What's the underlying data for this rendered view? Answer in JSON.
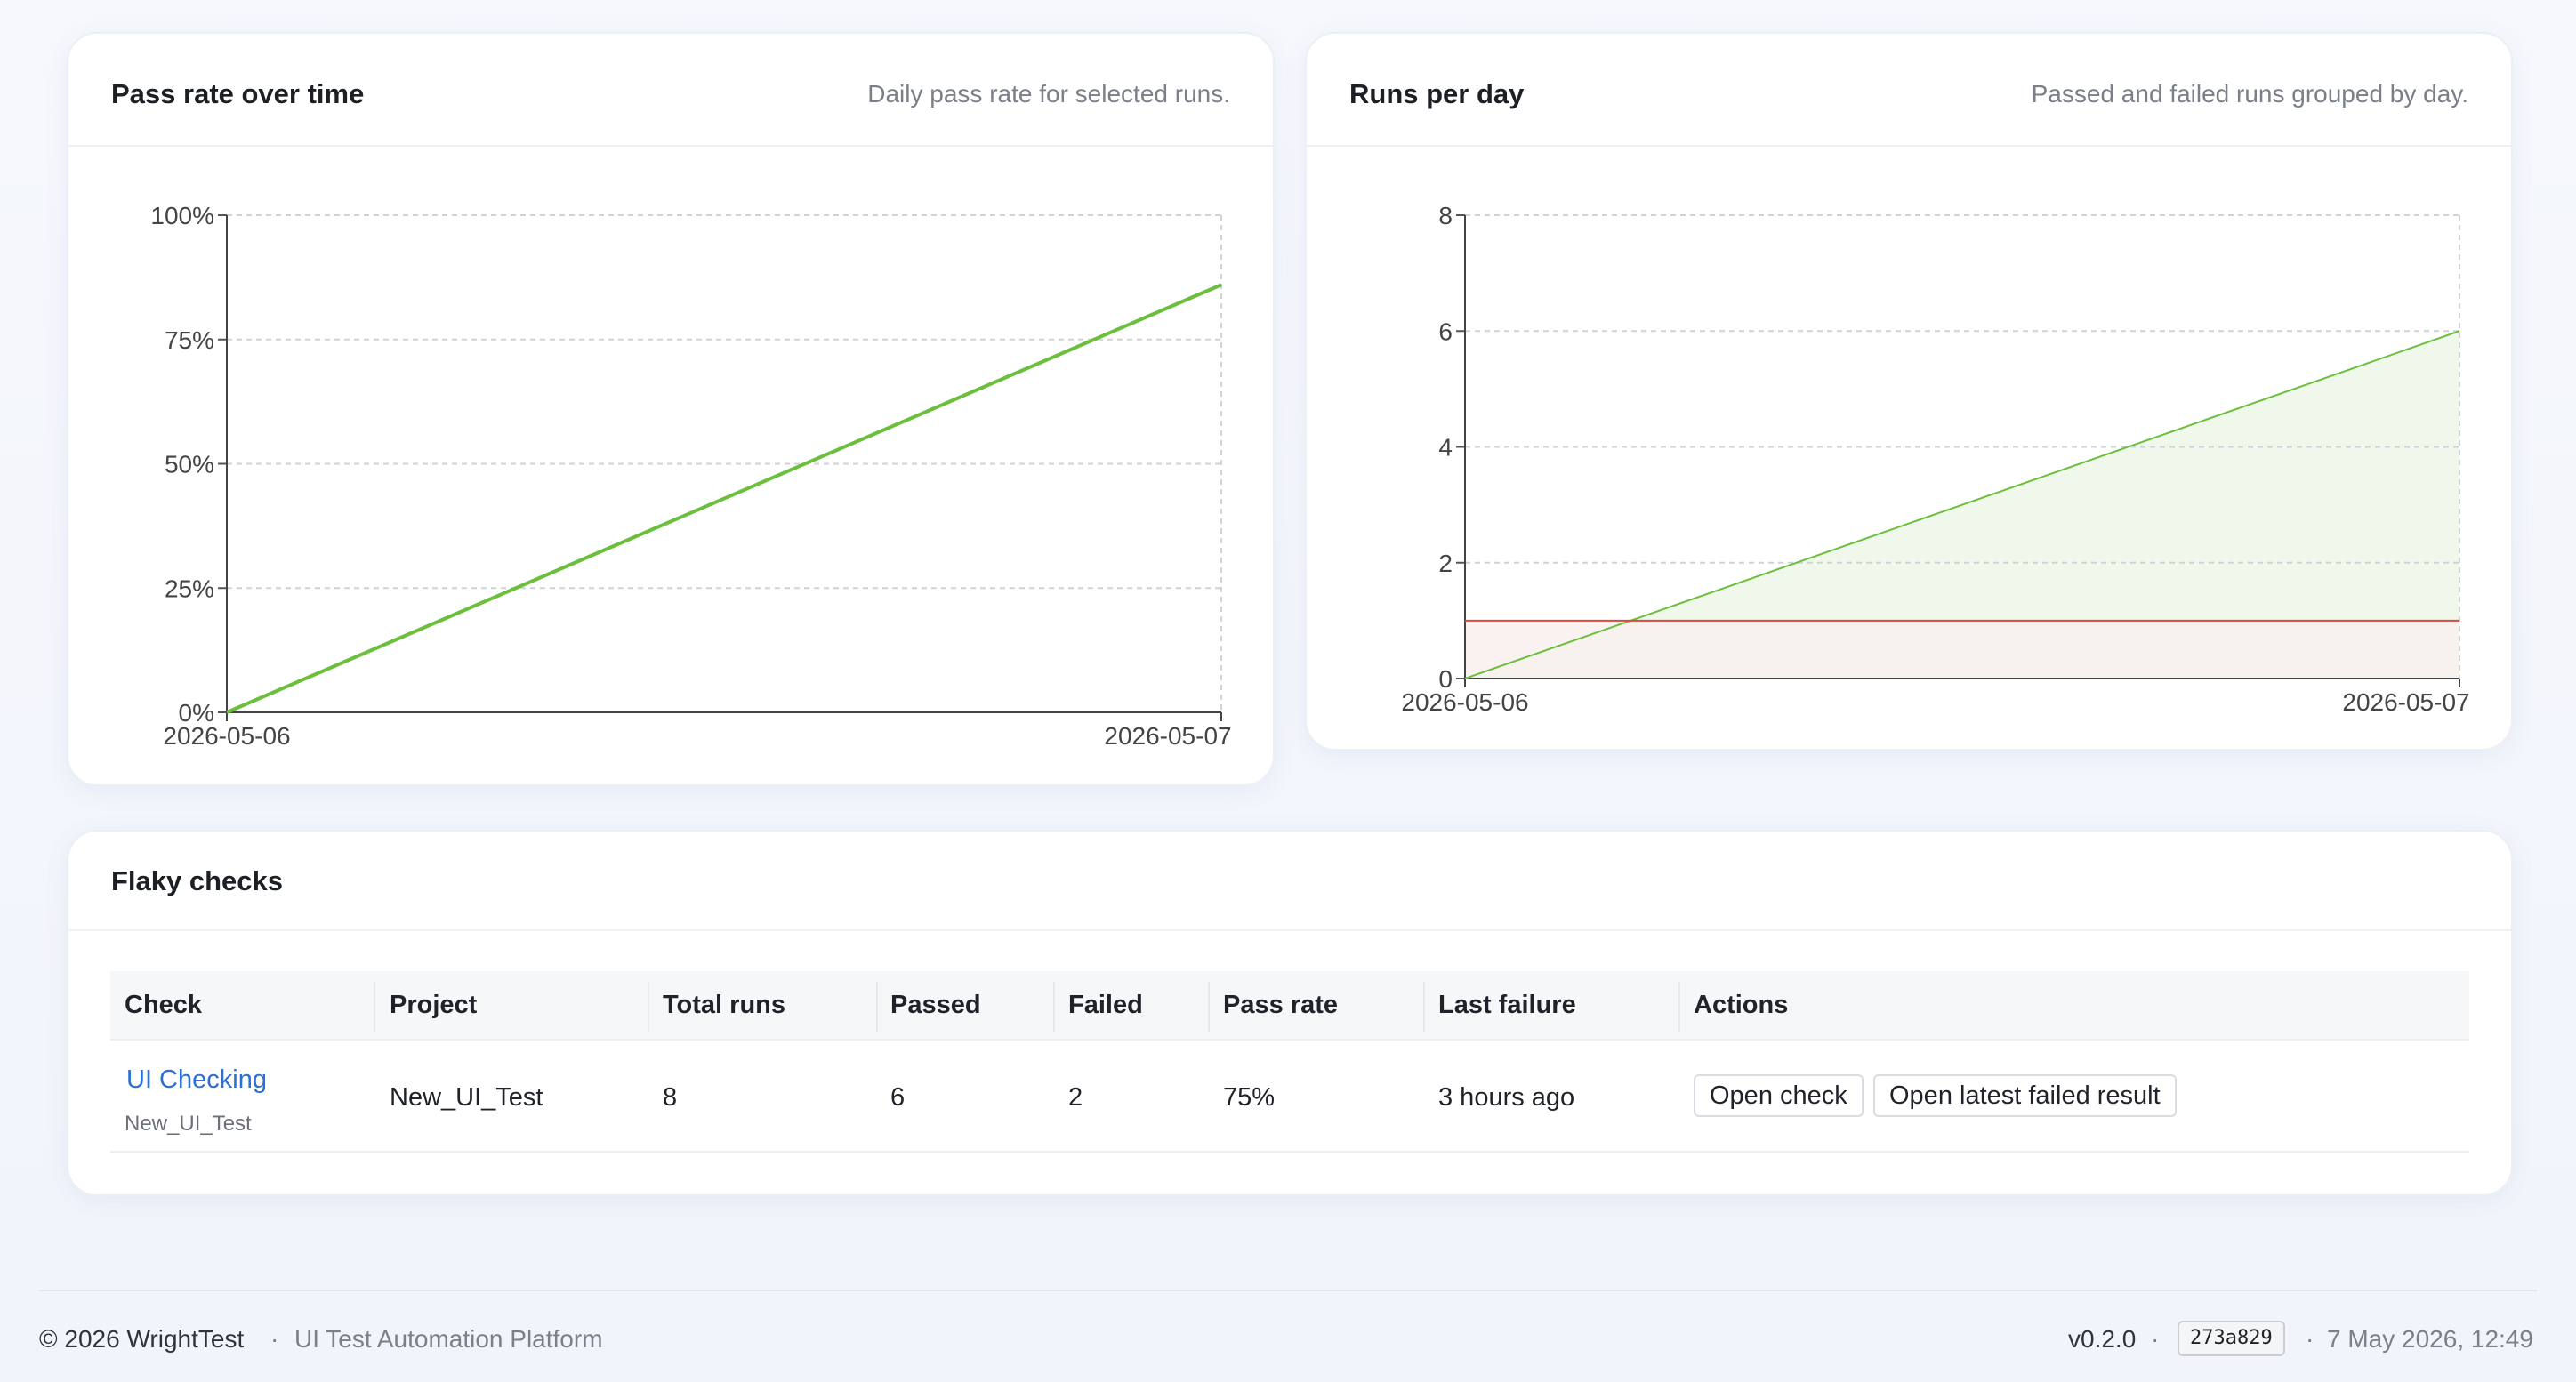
{
  "pass_rate_card": {
    "title": "Pass rate over time",
    "subtitle": "Daily pass rate for selected runs."
  },
  "runs_card": {
    "title": "Runs per day",
    "subtitle": "Passed and failed runs grouped by day."
  },
  "chart_data": [
    {
      "type": "line",
      "title": "Pass rate over time",
      "x": [
        "2026-05-06",
        "2026-05-07"
      ],
      "y_ticks": [
        "0%",
        "25%",
        "50%",
        "75%",
        "100%"
      ],
      "ylim": [
        0,
        100
      ],
      "series": [
        {
          "values": [
            0,
            86
          ],
          "color": "#6cbf3c"
        }
      ],
      "grid": true
    },
    {
      "type": "area",
      "title": "Runs per day",
      "x": [
        "2026-05-06",
        "2026-05-07"
      ],
      "y_ticks": [
        "0",
        "2",
        "4",
        "6",
        "8"
      ],
      "ylim": [
        0,
        8
      ],
      "series": [
        {
          "values": [
            0,
            6
          ],
          "color": "#6cbf3c",
          "fill": "#eef7ea"
        },
        {
          "values": [
            1,
            1
          ],
          "color": "#e0463c",
          "fill": "#f8f1ee"
        }
      ],
      "grid": true
    }
  ],
  "flaky": {
    "title": "Flaky checks",
    "headers": {
      "check": "Check",
      "project": "Project",
      "total": "Total runs",
      "passed": "Passed",
      "failed": "Failed",
      "rate": "Pass rate",
      "last": "Last failure",
      "actions": "Actions"
    },
    "rows": [
      {
        "check": "UI Checking",
        "check_project": "New_UI_Test",
        "project": "New_UI_Test",
        "total": "8",
        "passed": "6",
        "failed": "2",
        "rate": "75%",
        "last": "3 hours ago",
        "open_check": "Open check",
        "open_failed": "Open latest failed result"
      }
    ]
  },
  "footer": {
    "copyright": "© 2026 WrightTest",
    "sep": "·",
    "tagline": "UI Test Automation Platform",
    "version": "v0.2.0",
    "commit": "273a829",
    "timestamp": "7 May 2026, 12:49"
  }
}
